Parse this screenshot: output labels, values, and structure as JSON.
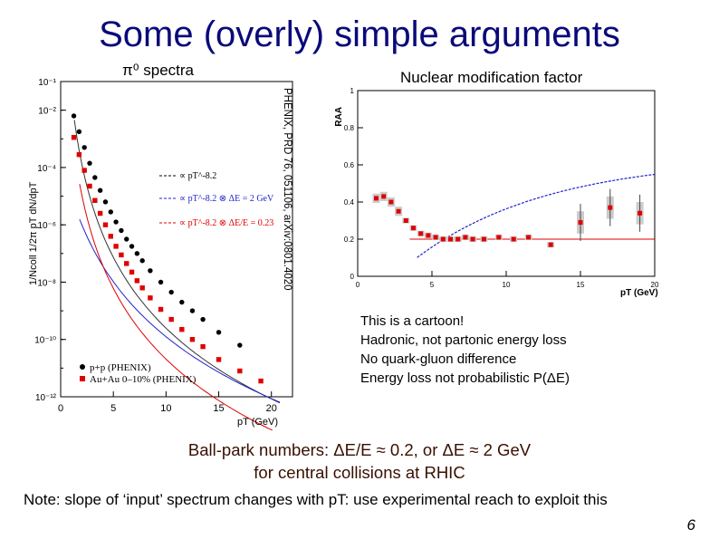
{
  "slide": {
    "title": "Some (overly) simple arguments",
    "left_label": "π⁰ spectra",
    "right_label": "Nuclear modification factor",
    "reference": "PHENIX, PRD 76, 051106, arXiv:0801.4020",
    "cartoon_lines": [
      "This is a cartoon!",
      "Hadronic, not partonic energy loss",
      "No quark-gluon difference",
      "Energy loss not probabilistic P(ΔE)"
    ],
    "ballpark_line1": "Ball-park numbers: ΔE/E ≈ 0.2, or ΔE ≈ 2 GeV",
    "ballpark_line2": "for central collisions at RHIC",
    "note": "Note: slope of ‘input’ spectrum changes with pT: use experimental reach to exploit this",
    "page_number": "6"
  },
  "colors": {
    "title": "#0a0a7a",
    "black_series": "#000000",
    "red_series": "#e00000",
    "blue_curve": "#2222cc",
    "ballpark": "#3a0f00"
  },
  "chart_data": [
    {
      "type": "scatter",
      "ylabel": "1/Ncoll 1/2π pT dN/dpT",
      "xlabel": "pT (GeV)",
      "xlim": [
        0,
        22
      ],
      "ylim_log10": [
        -12,
        -1
      ],
      "x_ticks": [
        "0",
        "5",
        "10",
        "15",
        "20"
      ],
      "y_ticks": [
        "10⁻¹",
        "10⁻²",
        "10⁻⁴",
        "10⁻⁶",
        "10⁻⁸",
        "10⁻¹⁰",
        "10⁻¹²"
      ],
      "legend": [
        "p+p (PHENIX)",
        "Au+Au 0–10% (PHENIX)"
      ],
      "curve_legend": [
        "∝ pT^-8.2",
        "∝ pT^-8.2 ⊗ ΔE = 2 GeV",
        "∝ pT^-8.2 ⊗ ΔE/E = 0.23"
      ],
      "series": [
        {
          "name": "p+p (PHENIX)",
          "x": [
            1.25,
            1.75,
            2.25,
            2.75,
            3.25,
            3.75,
            4.25,
            4.75,
            5.25,
            5.75,
            6.25,
            6.75,
            7.25,
            7.75,
            8.5,
            9.5,
            10.5,
            11.5,
            12.5,
            13.5,
            15,
            17
          ],
          "y_log10": [
            -2.2,
            -2.75,
            -3.3,
            -3.85,
            -4.35,
            -4.8,
            -5.2,
            -5.55,
            -5.9,
            -6.2,
            -6.5,
            -6.75,
            -7.0,
            -7.25,
            -7.6,
            -8.0,
            -8.35,
            -8.7,
            -9.0,
            -9.3,
            -9.75,
            -10.2
          ]
        },
        {
          "name": "Au+Au 0-10% (PHENIX)",
          "x": [
            1.25,
            1.75,
            2.25,
            2.75,
            3.25,
            3.75,
            4.25,
            4.75,
            5.25,
            5.75,
            6.25,
            6.75,
            7.25,
            7.75,
            8.5,
            9.5,
            10.5,
            11.5,
            12.5,
            13.5,
            15,
            17,
            19
          ],
          "y_log10": [
            -2.95,
            -3.55,
            -4.1,
            -4.65,
            -5.15,
            -5.6,
            -6.0,
            -6.4,
            -6.75,
            -7.05,
            -7.35,
            -7.65,
            -7.95,
            -8.2,
            -8.55,
            -8.95,
            -9.3,
            -9.65,
            -10.0,
            -10.25,
            -10.7,
            -11.1,
            -11.45
          ]
        }
      ]
    },
    {
      "type": "scatter",
      "ylabel": "RAA",
      "xlabel": "pT (GeV)",
      "xlim": [
        0,
        20
      ],
      "ylim": [
        0,
        1
      ],
      "x_ticks": [
        "0",
        "5",
        "10",
        "15",
        "20"
      ],
      "y_ticks": [
        "0",
        "0.2",
        "0.4",
        "0.6",
        "0.8",
        "1"
      ],
      "series": [
        {
          "name": "RAA π0",
          "x": [
            1.25,
            1.75,
            2.25,
            2.75,
            3.25,
            3.75,
            4.25,
            4.75,
            5.25,
            5.75,
            6.25,
            6.75,
            7.25,
            7.75,
            8.5,
            9.5,
            10.5,
            11.5,
            13,
            15,
            17,
            19
          ],
          "y": [
            0.42,
            0.43,
            0.4,
            0.35,
            0.3,
            0.26,
            0.23,
            0.22,
            0.21,
            0.2,
            0.2,
            0.2,
            0.21,
            0.2,
            0.2,
            0.21,
            0.2,
            0.21,
            0.17,
            0.29,
            0.37,
            0.34
          ]
        }
      ],
      "reference_lines": [
        {
          "name": "flat RAA",
          "value": 0.2
        }
      ]
    }
  ]
}
